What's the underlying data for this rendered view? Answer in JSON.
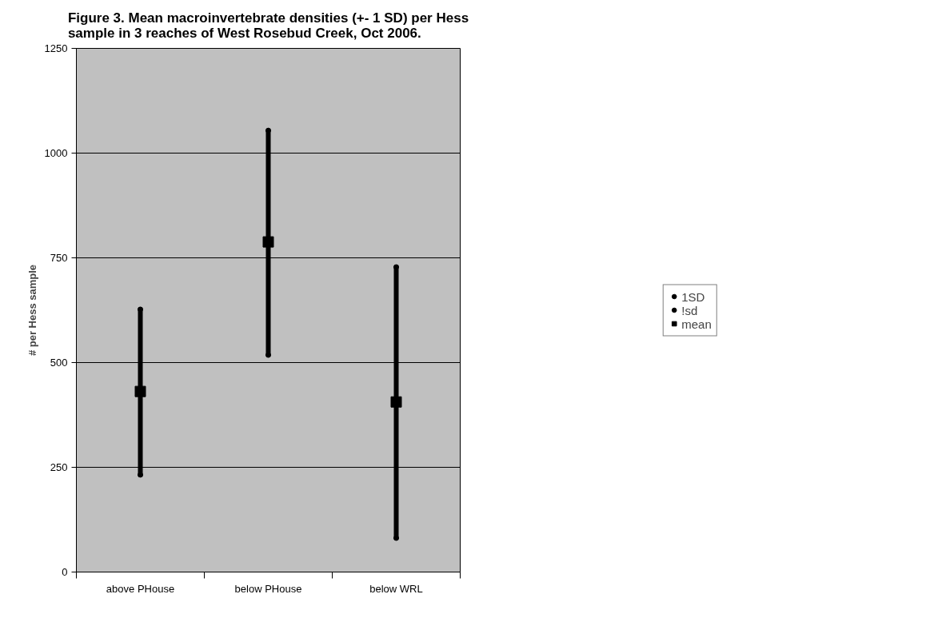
{
  "chart_data": {
    "type": "scatter",
    "title": "Figure 3. Mean macroinvertebrate densities (+- 1 SD) per Hess\nsample in 3 reaches of West Rosebud Creek, Oct 2006.",
    "ylabel": "# per Hess sample",
    "categories": [
      "above PHouse",
      "below PHouse",
      "below WRL"
    ],
    "series": [
      {
        "name": "1SD",
        "color": "#000000",
        "marker": "none",
        "values": [
          627,
          1054,
          728
        ]
      },
      {
        "name": "!sd",
        "color": "#000000",
        "marker": "none",
        "values": [
          232,
          518,
          81
        ]
      },
      {
        "name": "mean",
        "color": "#000000",
        "marker": "square",
        "values": [
          431,
          788,
          406
        ]
      }
    ],
    "ylim": [
      0,
      1250
    ],
    "yticks": [
      0,
      250,
      500,
      750,
      1000,
      1250
    ],
    "grid": "y",
    "legend": "right"
  }
}
